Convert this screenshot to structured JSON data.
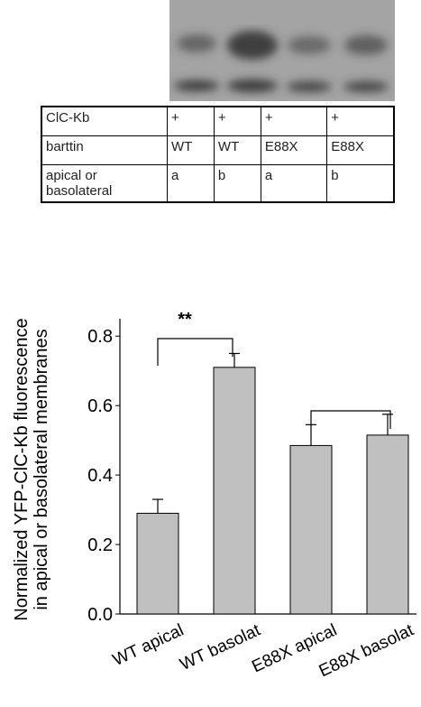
{
  "table": {
    "rows": [
      [
        "ClC-Kb",
        "+",
        "+",
        "+",
        "+"
      ],
      [
        "barttin",
        "WT",
        "WT",
        "E88X",
        "E88X"
      ],
      [
        "apical or basolateral",
        "a",
        "b",
        "a",
        "b"
      ]
    ]
  },
  "chart_data": {
    "type": "bar",
    "y_label": [
      "Normalized YFP-ClC-Kb fluorescence",
      "in apical or basolateral membranes"
    ],
    "categories": [
      "WT apical",
      "WT basolat",
      "E88X apical",
      "E88X basolat"
    ],
    "values": [
      0.29,
      0.71,
      0.485,
      0.515
    ],
    "errors": [
      0.04,
      0.04,
      0.06,
      0.06
    ],
    "color": "#c0c0c0",
    "ylim": [
      0,
      0.85
    ],
    "yticks": [
      {
        "value": 0,
        "label": "0.0"
      },
      0.2,
      0.4,
      0.6,
      0.8
    ],
    "annotations": [
      "**"
    ]
  }
}
